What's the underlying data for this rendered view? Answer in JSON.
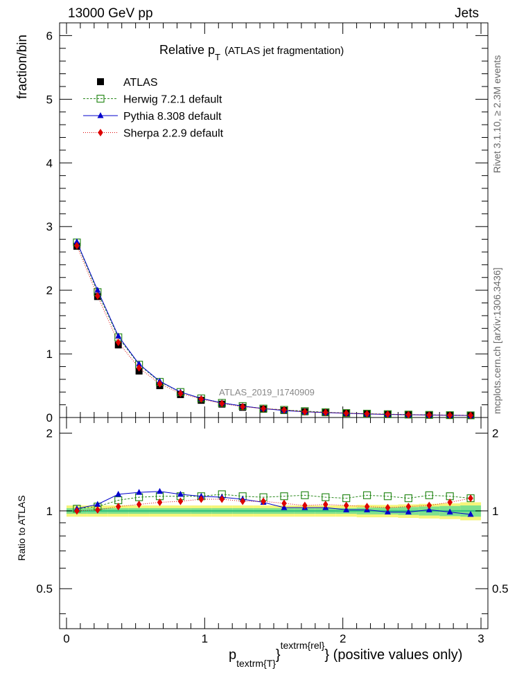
{
  "header": {
    "left_text": "13000 GeV pp",
    "right_text": "Jets"
  },
  "side_labels": {
    "rivet": "Rivet 3.1.10, ≥ 2.3M events",
    "mcplots": "mcplots.cern.ch [arXiv:1306.3436]"
  },
  "chart_data": {
    "type": "line",
    "title_main": "Relative p",
    "title_sub": "T",
    "title_rest": "(ATLAS jet fragmentation)",
    "watermark": "ATLAS_2019_I1740909",
    "ylabel": "fraction/bin",
    "ratio_ylabel": "Ratio to ATLAS",
    "xlabel_p": "p",
    "xlabel_sub": "textrm{T}",
    "xlabel_sup": "textrm{rel}",
    "xlabel_rest": "} (positive values only)",
    "xlabel_brace": "}",
    "xlim": [
      -0.05,
      3.05
    ],
    "ylim": [
      0,
      6.2
    ],
    "ratio_ylim": [
      0.35,
      2.3
    ],
    "x_ticks": [
      "0",
      "1",
      "2",
      "3"
    ],
    "y_ticks": [
      "0",
      "1",
      "2",
      "3",
      "4",
      "5",
      "6"
    ],
    "ratio_ticks": [
      "0.5",
      "1",
      "2"
    ],
    "legend_placement": "top-left",
    "x": [
      0.075,
      0.225,
      0.375,
      0.525,
      0.675,
      0.825,
      0.975,
      1.125,
      1.275,
      1.425,
      1.575,
      1.725,
      1.875,
      2.025,
      2.175,
      2.325,
      2.475,
      2.625,
      2.775,
      2.925
    ],
    "series": [
      {
        "name": "ATLAS",
        "values": [
          2.69,
          1.9,
          1.14,
          0.73,
          0.5,
          0.36,
          0.27,
          0.21,
          0.16,
          0.13,
          0.11,
          0.09,
          0.075,
          0.065,
          0.055,
          0.048,
          0.043,
          0.039,
          0.035,
          0.032
        ]
      },
      {
        "name": "Herwig 7.2.1 default",
        "values": [
          2.75,
          1.97,
          1.26,
          0.83,
          0.56,
          0.4,
          0.3,
          0.23,
          0.18,
          0.14,
          0.12,
          0.1,
          0.083,
          0.07,
          0.06,
          0.052,
          0.046,
          0.041,
          0.037,
          0.034
        ]
      },
      {
        "name": "Pythia 8.308 default",
        "values": [
          2.76,
          2.0,
          1.28,
          0.84,
          0.57,
          0.4,
          0.3,
          0.23,
          0.18,
          0.14,
          0.11,
          0.09,
          0.077,
          0.066,
          0.056,
          0.048,
          0.043,
          0.039,
          0.035,
          0.031
        ]
      },
      {
        "name": "Sherpa 2.2.9 default",
        "values": [
          2.7,
          1.91,
          1.18,
          0.78,
          0.53,
          0.38,
          0.29,
          0.22,
          0.17,
          0.14,
          0.12,
          0.09,
          0.08,
          0.068,
          0.058,
          0.051,
          0.045,
          0.04,
          0.036,
          0.034
        ]
      }
    ],
    "ratio_series": [
      {
        "name": "Herwig 7.2.1 default",
        "values": [
          1.02,
          1.04,
          1.1,
          1.13,
          1.14,
          1.14,
          1.14,
          1.16,
          1.14,
          1.13,
          1.14,
          1.15,
          1.13,
          1.12,
          1.15,
          1.14,
          1.12,
          1.15,
          1.14,
          1.12
        ]
      },
      {
        "name": "Pythia 8.308 default",
        "values": [
          1.02,
          1.06,
          1.16,
          1.18,
          1.19,
          1.16,
          1.14,
          1.13,
          1.11,
          1.08,
          1.03,
          1.03,
          1.03,
          1.01,
          1.01,
          0.99,
          0.99,
          1.01,
          0.99,
          0.97
        ]
      },
      {
        "name": "Sherpa 2.2.9 default",
        "values": [
          1.0,
          1.01,
          1.04,
          1.06,
          1.08,
          1.09,
          1.11,
          1.11,
          1.09,
          1.09,
          1.07,
          1.05,
          1.06,
          1.05,
          1.04,
          1.03,
          1.04,
          1.05,
          1.08,
          1.12
        ]
      }
    ],
    "ratio_band_yellow_halfwidth": [
      0.05,
      0.05,
      0.05,
      0.05,
      0.05,
      0.05,
      0.05,
      0.05,
      0.05,
      0.05,
      0.05,
      0.05,
      0.05,
      0.05,
      0.055,
      0.055,
      0.06,
      0.065,
      0.07,
      0.08
    ],
    "ratio_band_green_halfwidth": [
      0.025,
      0.025,
      0.025,
      0.025,
      0.025,
      0.025,
      0.025,
      0.025,
      0.025,
      0.025,
      0.025,
      0.025,
      0.025,
      0.025,
      0.03,
      0.03,
      0.035,
      0.04,
      0.045,
      0.05
    ],
    "colors": {
      "ATLAS": "#000000",
      "Herwig": "#2b8a1e",
      "Pythia": "#0000cc",
      "Sherpa": "#dd0000",
      "band_yellow": "#f5f57a",
      "band_green": "#7ee08e",
      "ratio_ref": "#2ec27e"
    }
  }
}
